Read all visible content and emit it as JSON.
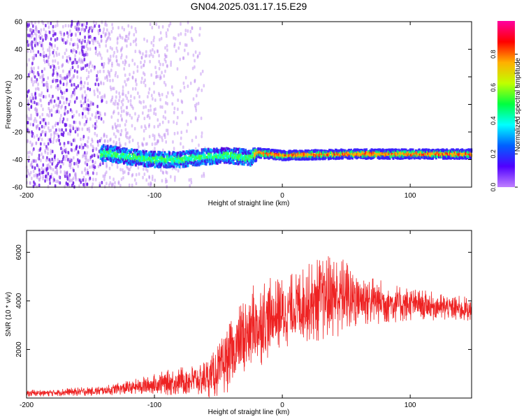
{
  "title": "GN04.2025.031.17.15.E29",
  "chart_data": [
    {
      "type": "heatmap",
      "xlabel": "Height of straight line (km)",
      "ylabel": "Frequency (Hz)",
      "xlim": [
        -200,
        148
      ],
      "ylim": [
        -60,
        60
      ],
      "xticks": [
        -200,
        -100,
        0,
        100
      ],
      "yticks": [
        -60,
        -40,
        -20,
        0,
        20,
        40,
        60
      ],
      "colorbar": {
        "label": "Normalized spectral amplitude",
        "range": [
          0,
          1
        ],
        "ticks": [
          "0.0",
          "0.2",
          "0.4",
          "0.6",
          "0.8"
        ],
        "colors": [
          "#c080ff",
          "#5000ff",
          "#0060ff",
          "#00ffff",
          "#00ff40",
          "#c0ff00",
          "#ffb000",
          "#ff0000",
          "#ff00a0"
        ]
      },
      "ridge": [
        {
          "x": -140,
          "y": -35
        },
        {
          "x": -120,
          "y": -38
        },
        {
          "x": -100,
          "y": -40
        },
        {
          "x": -80,
          "y": -40
        },
        {
          "x": -60,
          "y": -38
        },
        {
          "x": -40,
          "y": -37
        },
        {
          "x": -25,
          "y": -39
        },
        {
          "x": -20,
          "y": -35
        },
        {
          "x": 0,
          "y": -37
        },
        {
          "x": 50,
          "y": -36
        },
        {
          "x": 100,
          "y": -36
        },
        {
          "x": 148,
          "y": -36
        }
      ]
    },
    {
      "type": "line",
      "xlabel": "Height of straight line (km)",
      "ylabel": "SNR (10 * v/v)",
      "xlim": [
        -200,
        148
      ],
      "ylim": [
        0,
        6900
      ],
      "xticks": [
        -200,
        -100,
        0,
        100
      ],
      "yticks": [
        2000,
        4000,
        6000
      ],
      "series": [
        {
          "color": "#ee2222",
          "x": [
            -200,
            -180,
            -160,
            -140,
            -120,
            -100,
            -80,
            -65,
            -55,
            -45,
            -35,
            -25,
            -15,
            -5,
            5,
            15,
            25,
            35,
            45,
            60,
            80,
            100,
            120,
            148
          ],
          "y": [
            200,
            220,
            260,
            300,
            420,
            560,
            700,
            750,
            900,
            1400,
            2100,
            2800,
            3200,
            3400,
            3600,
            3850,
            4000,
            4150,
            4200,
            4100,
            3950,
            3850,
            3750,
            3650
          ],
          "spread": [
            150,
            150,
            180,
            200,
            300,
            450,
            600,
            650,
            900,
            1300,
            1600,
            1800,
            1800,
            1500,
            1500,
            1500,
            1700,
            1800,
            1700,
            1200,
            900,
            700,
            600,
            500
          ]
        }
      ]
    }
  ]
}
